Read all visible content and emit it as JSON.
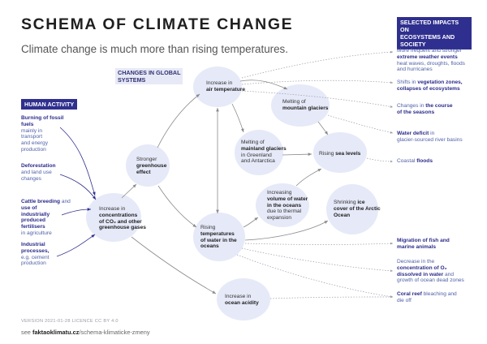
{
  "header": {
    "title": "SCHEMA OF CLIMATE CHANGE",
    "subtitle": "Climate change is much more than rising temperatures."
  },
  "sections": {
    "human_activity": "HUMAN ACTIVITY",
    "changes_line1": "CHANGES IN GLOBAL",
    "changes_line2": "SYSTEMS",
    "impacts_line1": "SELECTED IMPACTS ON",
    "impacts_line2": "ECOSYSTEMS AND",
    "impacts_line3": "SOCIETY"
  },
  "human_activity": [
    {
      "l1": "Burning of fossil",
      "l2": "fuels",
      "r1": "mainly in",
      "r2": "transport",
      "r3": "and energy",
      "r4": "production"
    },
    {
      "l1": "Deforestation",
      "r1": "and land use",
      "r2": "changes"
    },
    {
      "l1": "Cattle breeding",
      "l1b": "and",
      "l2": "use of",
      "l3": "industrially",
      "l4": "produced",
      "l5": "fertilisers",
      "r1": "in agriculture"
    },
    {
      "l1": "Industrial",
      "l2": "processes,",
      "r1": "e.g. cement",
      "r2": "production"
    }
  ],
  "nodes": {
    "concentrations": {
      "l1": "Increase in",
      "b1": "concentrations",
      "b2": "of CO₂ and other",
      "b3": "greenhouse gases"
    },
    "greenhouse": {
      "l1": "Stronger",
      "b1": "greenhouse",
      "b2": "effect"
    },
    "air_temp": {
      "l1": "Increase in",
      "b1": "air temperature"
    },
    "mountain": {
      "l1": "Melting of",
      "b1": "mountain glaciers"
    },
    "mainland": {
      "l1": "Melting of",
      "b1": "mainland glaciers",
      "r1": "in Greenland",
      "r2": "and Antarctica"
    },
    "sea_levels": {
      "l1": "Rising",
      "b1": "sea levels"
    },
    "water_temp": {
      "l1": "Rising",
      "b1": "temperatures",
      "b2": "of water in the",
      "b3": "oceans"
    },
    "volume": {
      "l1": "Increasing",
      "b1": "volume of water",
      "b2": "in the oceans",
      "r1": "due to thermal",
      "r2": "expansion"
    },
    "ice": {
      "l1": "Shrinking",
      "b1": "ice",
      "b2": "cover of the Arctic",
      "b3": "Ocean"
    },
    "acidity": {
      "l1": "Increase in",
      "b1": "ocean acidity"
    }
  },
  "impacts": [
    {
      "a1": "More frequent and stronger",
      "b1": "extreme weather events",
      "a2": "heat waves, droughts, floods",
      "a3": "and hurricanes"
    },
    {
      "a1": "Shifts in",
      "b1": "vegetation zones,",
      "b2": "collapses of ecosystems"
    },
    {
      "a1": "Changes in",
      "b1": "the course",
      "b2": "of the seasons"
    },
    {
      "b1": "Water deficit",
      "a1": "in",
      "a2": "glacier-sourced river basins"
    },
    {
      "a1": "Coastal",
      "b1": "floods"
    },
    {
      "b1": "Migration of fish and",
      "b2": "marine animals"
    },
    {
      "a1": "Decrease in the",
      "b1": "concentration of O₂",
      "b2": "dissolved in water",
      "a2": "and",
      "a3": "growth of ocean dead zones"
    },
    {
      "b1": "Coral reef",
      "a1": "bleaching and",
      "a2": "die off"
    }
  ],
  "footer": {
    "version": "VERSION 2021-01-28   LICENCE CC BY 4.0",
    "see": "see",
    "link_bold": "faktaoklimatu.cz",
    "link_rest": "/schema-klimaticke-zmeny"
  },
  "colors": {
    "accent": "#2f2f8f",
    "blob": "#e6e9f8",
    "arrow": "#8a8a8a"
  }
}
